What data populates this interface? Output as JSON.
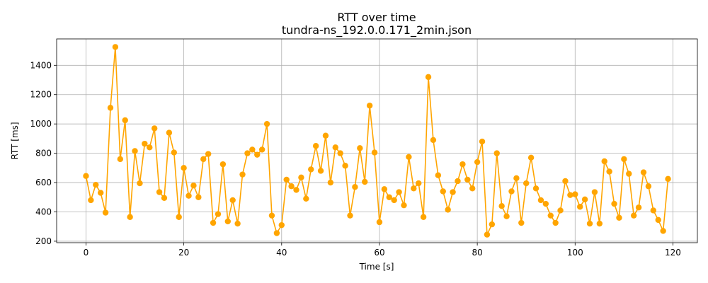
{
  "chart_data": {
    "type": "line",
    "title": "RTT over time",
    "subtitle": "tundra-ns_192.0.0.171_2min.json",
    "xlabel": "Time [s]",
    "ylabel": "RTT [ms]",
    "xlim": [
      -6,
      125
    ],
    "ylim": [
      190,
      1580
    ],
    "xticks": [
      0,
      20,
      40,
      60,
      80,
      100,
      120
    ],
    "yticks": [
      200,
      400,
      600,
      800,
      1000,
      1200,
      1400
    ],
    "grid": true,
    "color": "#ffa500",
    "marker": "circle",
    "x": [
      0,
      1,
      2,
      3,
      4,
      5,
      6,
      7,
      8,
      9,
      10,
      11,
      12,
      13,
      14,
      15,
      16,
      17,
      18,
      19,
      20,
      21,
      22,
      23,
      24,
      25,
      26,
      27,
      28,
      29,
      30,
      31,
      32,
      33,
      34,
      35,
      36,
      37,
      38,
      39,
      40,
      41,
      42,
      43,
      44,
      45,
      46,
      47,
      48,
      49,
      50,
      51,
      52,
      53,
      54,
      55,
      56,
      57,
      58,
      59,
      60,
      61,
      62,
      63,
      64,
      65,
      66,
      67,
      68,
      69,
      70,
      71,
      72,
      73,
      74,
      75,
      76,
      77,
      78,
      79,
      80,
      81,
      82,
      83,
      84,
      85,
      86,
      87,
      88,
      89,
      90,
      91,
      92,
      93,
      94,
      95,
      96,
      97,
      98,
      99,
      100,
      101,
      102,
      103,
      104,
      105,
      106,
      107,
      108,
      109,
      110,
      111,
      112,
      113,
      114,
      115,
      116,
      117,
      118,
      119
    ],
    "y": [
      645,
      480,
      585,
      530,
      395,
      1110,
      1525,
      760,
      1025,
      365,
      815,
      595,
      865,
      840,
      970,
      535,
      495,
      940,
      805,
      365,
      700,
      510,
      580,
      500,
      760,
      795,
      325,
      385,
      725,
      335,
      480,
      320,
      655,
      800,
      825,
      790,
      825,
      1000,
      375,
      255,
      310,
      620,
      575,
      550,
      635,
      490,
      690,
      850,
      680,
      920,
      600,
      840,
      800,
      715,
      375,
      570,
      835,
      605,
      1125,
      805,
      330,
      555,
      500,
      480,
      535,
      445,
      775,
      560,
      595,
      365,
      1320,
      890,
      650,
      540,
      415,
      535,
      610,
      725,
      620,
      560,
      740,
      880,
      245,
      315,
      800,
      440,
      370,
      540,
      630,
      325,
      595,
      770,
      560,
      480,
      455,
      375,
      325,
      410,
      610,
      515,
      520,
      435,
      485,
      320,
      535,
      320,
      745,
      675,
      455,
      360,
      760,
      660,
      375,
      430,
      670,
      575,
      410,
      345,
      270,
      625
    ]
  }
}
